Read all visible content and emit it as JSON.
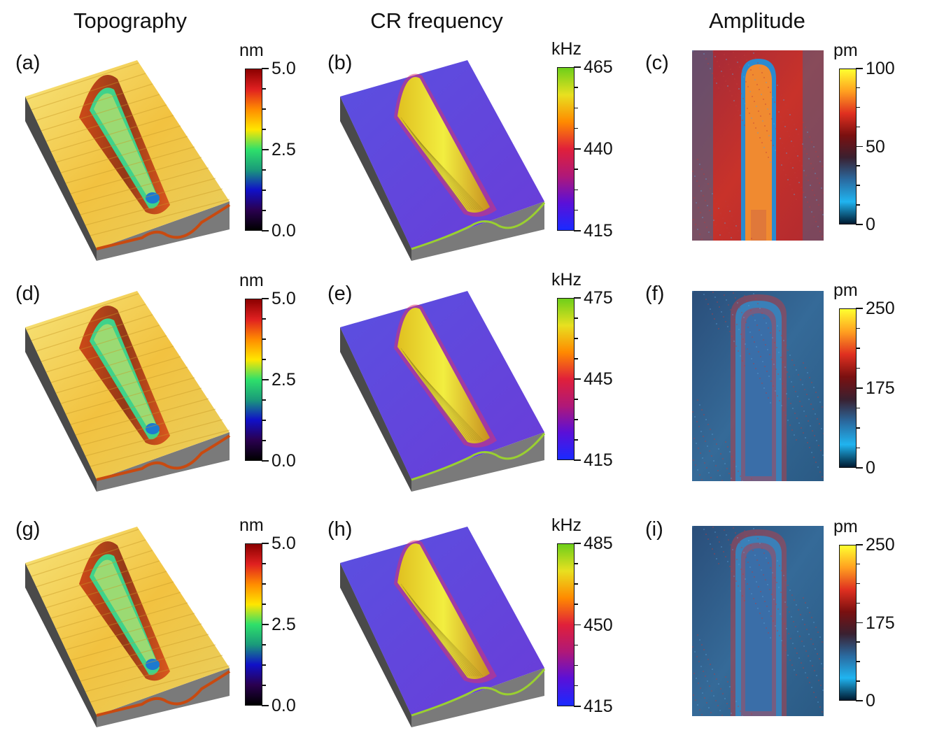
{
  "columns": [
    "Topography",
    "CR frequency",
    "Amplitude"
  ],
  "panels": [
    {
      "label": "(a)",
      "unit": "nm",
      "ticks": [
        "5.0",
        "2.5",
        "0.0"
      ]
    },
    {
      "label": "(b)",
      "unit": "kHz",
      "ticks": [
        "465",
        "440",
        "415"
      ]
    },
    {
      "label": "(c)",
      "unit": "pm",
      "ticks": [
        "100",
        "50",
        "0"
      ]
    },
    {
      "label": "(d)",
      "unit": "nm",
      "ticks": [
        "5.0",
        "2.5",
        "0.0"
      ]
    },
    {
      "label": "(e)",
      "unit": "kHz",
      "ticks": [
        "475",
        "445",
        "415"
      ]
    },
    {
      "label": "(f)",
      "unit": "pm",
      "ticks": [
        "250",
        "175",
        "0"
      ]
    },
    {
      "label": "(g)",
      "unit": "nm",
      "ticks": [
        "5.0",
        "2.5",
        "0.0"
      ]
    },
    {
      "label": "(h)",
      "unit": "kHz",
      "ticks": [
        "485",
        "450",
        "415"
      ]
    },
    {
      "label": "(i)",
      "unit": "pm",
      "ticks": [
        "250",
        "175",
        "0"
      ]
    }
  ],
  "colors": {
    "topo_bar": [
      "#8b0000",
      "#e02020",
      "#ff8c00",
      "#ffe600",
      "#2ee06a",
      "#1a9a7a",
      "#1010c8",
      "#2a0050",
      "#000000"
    ],
    "freq_bar": [
      "#6ecf1a",
      "#e8e020",
      "#ff8a00",
      "#e0203a",
      "#b01878",
      "#5a10d8",
      "#1a2aff"
    ],
    "amp_bar": [
      "#ffff30",
      "#ffa020",
      "#e03020",
      "#7a1010",
      "#3a2030",
      "#2a6aa0",
      "#20b4f0",
      "#001a30"
    ]
  }
}
